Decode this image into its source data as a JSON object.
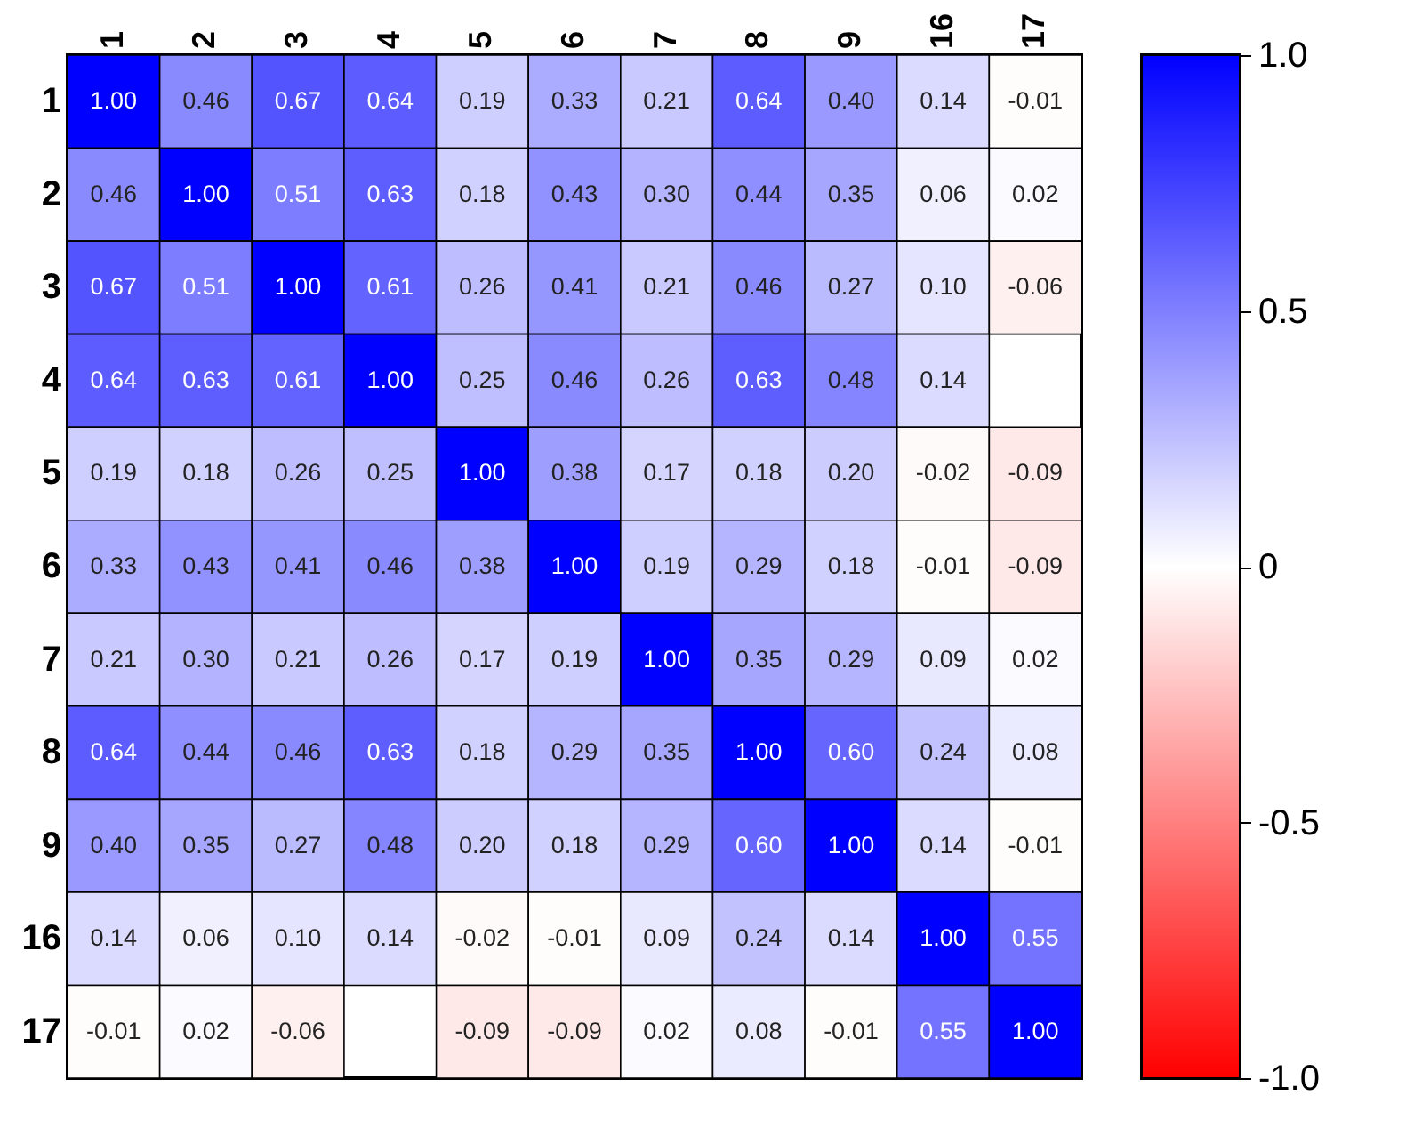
{
  "chart_data": {
    "type": "heatmap",
    "categories": [
      "1",
      "2",
      "3",
      "4",
      "5",
      "6",
      "7",
      "8",
      "9",
      "16",
      "17"
    ],
    "y_categories": [
      "1",
      "2",
      "3",
      "4",
      "5",
      "6",
      "7",
      "8",
      "9",
      "16",
      "17"
    ],
    "cells": [
      [
        1.0,
        0.46,
        0.67,
        0.64,
        0.19,
        0.33,
        0.21,
        0.64,
        0.4,
        0.14,
        -0.01
      ],
      [
        0.46,
        1.0,
        0.51,
        0.63,
        0.18,
        0.43,
        0.3,
        0.44,
        0.35,
        0.06,
        0.02
      ],
      [
        0.67,
        0.51,
        1.0,
        0.61,
        0.26,
        0.41,
        0.21,
        0.46,
        0.27,
        0.1,
        -0.06
      ],
      [
        0.64,
        0.63,
        0.61,
        1.0,
        0.25,
        0.46,
        0.26,
        0.63,
        0.48,
        0.14,
        null
      ],
      [
        0.19,
        0.18,
        0.26,
        0.25,
        1.0,
        0.38,
        0.17,
        0.18,
        0.2,
        -0.02,
        -0.09
      ],
      [
        0.33,
        0.43,
        0.41,
        0.46,
        0.38,
        1.0,
        0.19,
        0.29,
        0.18,
        -0.01,
        -0.09
      ],
      [
        0.21,
        0.3,
        0.21,
        0.26,
        0.17,
        0.19,
        1.0,
        0.35,
        0.29,
        0.09,
        0.02
      ],
      [
        0.64,
        0.44,
        0.46,
        0.63,
        0.18,
        0.29,
        0.35,
        1.0,
        0.6,
        0.24,
        0.08
      ],
      [
        0.4,
        0.35,
        0.27,
        0.48,
        0.2,
        0.18,
        0.29,
        0.6,
        1.0,
        0.14,
        -0.01
      ],
      [
        0.14,
        0.06,
        0.1,
        0.14,
        -0.02,
        -0.01,
        0.09,
        0.24,
        0.14,
        1.0,
        0.55
      ],
      [
        -0.01,
        0.02,
        -0.06,
        null,
        -0.09,
        -0.09,
        0.02,
        0.08,
        -0.01,
        0.55,
        1.0
      ]
    ],
    "clim": [
      -1,
      1
    ],
    "cticks": [
      {
        "value": 1,
        "label": "1.0"
      },
      {
        "value": 0.5,
        "label": "0.5"
      },
      {
        "value": 0,
        "label": "0"
      },
      {
        "value": -0.5,
        "label": "-0.5"
      },
      {
        "value": -1,
        "label": "-1.0"
      }
    ],
    "data_labels": true,
    "cell_labels": [
      [
        "1.00",
        "0.46",
        "0.67",
        "0.64",
        "0.19",
        "0.33",
        "0.21",
        "0.64",
        "0.40",
        "0.14",
        "-0.01"
      ],
      [
        "0.46",
        "1.00",
        "0.51",
        "0.63",
        "0.18",
        "0.43",
        "0.30",
        "0.44",
        "0.35",
        "0.06",
        "0.02"
      ],
      [
        "0.67",
        "0.51",
        "1.00",
        "0.61",
        "0.26",
        "0.41",
        "0.21",
        "0.46",
        "0.27",
        "0.10",
        "-0.06"
      ],
      [
        "0.64",
        "0.63",
        "0.61",
        "1.00",
        "0.25",
        "0.46",
        "0.26",
        "0.63",
        "0.48",
        "0.14",
        null
      ],
      [
        "0.19",
        "0.18",
        "0.26",
        "0.25",
        "1.00",
        "0.38",
        "0.17",
        "0.18",
        "0.20",
        "-0.02",
        "-0.09"
      ],
      [
        "0.33",
        "0.43",
        "0.41",
        "0.46",
        "0.38",
        "1.00",
        "0.19",
        "0.29",
        "0.18",
        "-0.01",
        "-0.09"
      ],
      [
        "0.21",
        "0.30",
        "0.21",
        "0.26",
        "0.17",
        "0.19",
        "1.00",
        "0.35",
        "0.29",
        "0.09",
        "0.02"
      ],
      [
        "0.64",
        "0.44",
        "0.46",
        "0.63",
        "0.18",
        "0.29",
        "0.35",
        "1.00",
        "0.60",
        "0.24",
        "0.08"
      ],
      [
        "0.40",
        "0.35",
        "0.27",
        "0.48",
        "0.20",
        "0.18",
        "0.29",
        "0.60",
        "1.00",
        "0.14",
        "-0.01"
      ],
      [
        "0.14",
        "0.06",
        "0.10",
        "0.14",
        "-0.02",
        "-0.01",
        "0.09",
        "0.24",
        "0.14",
        "1.00",
        "0.55"
      ],
      [
        "-0.01",
        "0.02",
        "-0.06",
        null,
        "-0.09",
        "-0.09",
        "0.02",
        "0.08",
        "-0.01",
        "0.55",
        "1.00"
      ]
    ]
  }
}
